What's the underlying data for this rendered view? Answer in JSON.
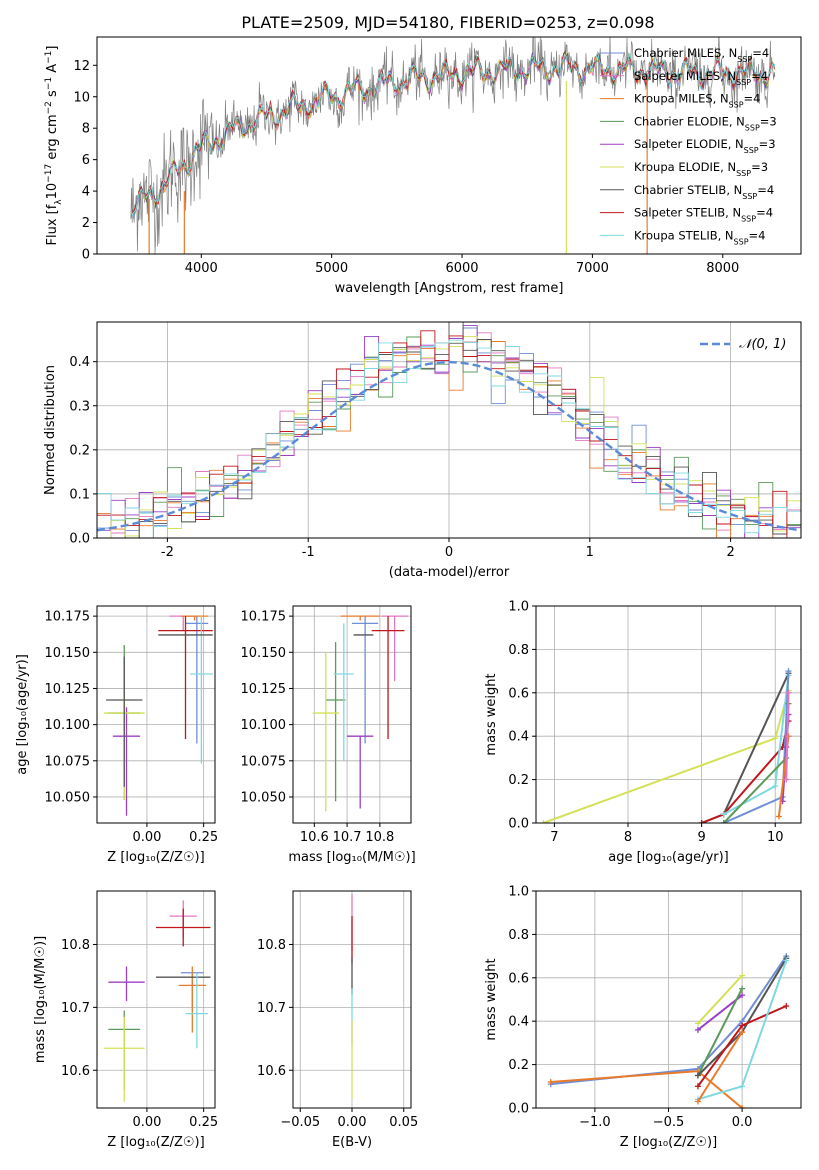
{
  "figure": {
    "title": "PLATE=2509, MJD=54180, FIBERID=0253, z=0.098"
  },
  "series_colors": {
    "Chabrier MILES": "#6f8fd6",
    "Salpeter MILES": "#e377c2",
    "Kroupa MILES": "#e87a2a",
    "Chabrier ELODIE": "#5a9a5a",
    "Salpeter ELODIE": "#9b3fc6",
    "Kroupa ELODIE": "#d4e157",
    "Chabrier STELIB": "#555555",
    "Salpeter STELIB": "#c0161c",
    "Kroupa STELIB": "#7fd8e0"
  },
  "chart_data": [
    {
      "id": "spectrum",
      "type": "line",
      "title": "PLATE=2509, MJD=54180, FIBERID=0253, z=0.098",
      "xlabel": "wavelength [Angstrom, rest frame]",
      "ylabel_main": "Flux [f",
      "ylabel_sub": "λ",
      "ylabel_mid": "10",
      "ylabel_sup1": "−17",
      "ylabel_rest": " erg cm",
      "ylabel_sup2": "−2",
      "ylabel_rest2": " s",
      "ylabel_sup3": "−1",
      "ylabel_rest3": " A",
      "ylabel_sup4": "−1",
      "ylabel_end": "]",
      "xlim": [
        3200,
        8600
      ],
      "ylim": [
        0,
        13.8
      ],
      "xticks": [
        4000,
        5000,
        6000,
        7000,
        8000
      ],
      "yticks": [
        0,
        2,
        4,
        6,
        8,
        10,
        12
      ],
      "legend": "top-right",
      "legend_entries": [
        {
          "name": "Chabrier MILES",
          "nssp": "4"
        },
        {
          "name": "Salpeter MILES",
          "nssp": "4"
        },
        {
          "name": "Kroupa MILES",
          "nssp": "4"
        },
        {
          "name": "Chabrier ELODIE",
          "nssp": "3"
        },
        {
          "name": "Salpeter ELODIE",
          "nssp": "3"
        },
        {
          "name": "Kroupa ELODIE",
          "nssp": "3"
        },
        {
          "name": "Chabrier STELIB",
          "nssp": "4"
        },
        {
          "name": "Salpeter STELIB",
          "nssp": "4"
        },
        {
          "name": "Kroupa STELIB",
          "nssp": "4"
        }
      ],
      "continuum": {
        "x": [
          3450,
          3700,
          4000,
          4300,
          4600,
          5000,
          5500,
          6000,
          6500,
          7000,
          7500,
          8000,
          8400
        ],
        "y": [
          2.8,
          4.3,
          6.8,
          8.1,
          9.0,
          10.0,
          11.0,
          11.5,
          11.8,
          11.8,
          11.6,
          11.5,
          11.5
        ]
      },
      "spikes": [
        {
          "x": 6800,
          "y_from": 0,
          "y_to": 11.0,
          "series": "Kroupa ELODIE"
        },
        {
          "x": 7420,
          "y_from": 0,
          "y_to": 11.5,
          "series": "Kroupa MILES"
        },
        {
          "x": 3600,
          "y_from": 0,
          "y_to": 3.5,
          "series": "Kroupa MILES"
        },
        {
          "x": 3870,
          "y_from": 0,
          "y_to": 4.0,
          "series": "Kroupa MILES"
        }
      ]
    },
    {
      "id": "residuals",
      "type": "line",
      "xlabel": "(data-model)/error",
      "ylabel": "Normed distribution",
      "xlim": [
        -2.5,
        2.5
      ],
      "ylim": [
        0,
        0.49
      ],
      "xticks": [
        -2,
        -1,
        0,
        1,
        2
      ],
      "yticks": [
        0.0,
        0.1,
        0.2,
        0.3,
        0.4
      ],
      "grid": true,
      "legend": "top-right",
      "legend_label": "𝒩(0, 1)",
      "legend_color": "#5b8bd6",
      "bin_width": 0.1,
      "bin_start": -2.5
    },
    {
      "id": "age-vs-Z",
      "type": "scatter",
      "xlabel": "Z [log₁₀(Z/Z☉)]",
      "ylabel": "age  [log₁₀(age/yr)]",
      "xlim": [
        -0.22,
        0.3
      ],
      "ylim": [
        10.032,
        10.182
      ],
      "xticks": [
        -0.25,
        0.0,
        0.25
      ],
      "xticklabels": [
        "−0.25",
        "0.00",
        "0.25"
      ],
      "yticks": [
        10.05,
        10.075,
        10.1,
        10.125,
        10.15,
        10.175
      ],
      "grid": true,
      "points": [
        {
          "series": "Chabrier MILES",
          "x": 0.22,
          "y": 10.17,
          "xerr": 0.05,
          "yerr_lo": 0.083,
          "yerr_hi": 0.005
        },
        {
          "series": "Salpeter MILES",
          "x": 0.16,
          "y": 10.175,
          "xerr": 0.06,
          "yerr_lo": 0.01,
          "yerr_hi": 0.0
        },
        {
          "series": "Kroupa MILES",
          "x": 0.21,
          "y": 10.175,
          "xerr": 0.06,
          "yerr_lo": 0.003,
          "yerr_hi": 0.0
        },
        {
          "series": "Chabrier ELODIE",
          "x": -0.1,
          "y": 10.108,
          "xerr": 0.07,
          "yerr_lo": 0.06,
          "yerr_hi": 0.047
        },
        {
          "series": "Salpeter ELODIE",
          "x": -0.09,
          "y": 10.092,
          "xerr": 0.06,
          "yerr_lo": 0.055,
          "yerr_hi": 0.02
        },
        {
          "series": "Kroupa ELODIE",
          "x": -0.1,
          "y": 10.108,
          "xerr": 0.09,
          "yerr_lo": 0.06,
          "yerr_hi": 0.012
        },
        {
          "series": "Chabrier STELIB",
          "x": -0.1,
          "y": 10.117,
          "xerr": 0.08,
          "yerr_lo": 0.06,
          "yerr_hi": 0.03
        },
        {
          "series": "Salpeter STELIB",
          "x": 0.17,
          "y": 10.165,
          "xerr": 0.12,
          "yerr_lo": 0.075,
          "yerr_hi": 0.01
        },
        {
          "series": "Kroupa STELIB",
          "x": 0.24,
          "y": 10.135,
          "xerr": 0.05,
          "yerr_lo": 0.062,
          "yerr_hi": 0.04
        },
        {
          "series": "Chabrier STELIB",
          "x": 0.17,
          "y": 10.162,
          "xerr": 0.12,
          "yerr_lo": 0.0,
          "yerr_hi": 0.0
        }
      ]
    },
    {
      "id": "age-vs-mass",
      "type": "scatter",
      "xlabel": "mass [log₁₀(M/M☉)]",
      "xlim": [
        10.535,
        10.895
      ],
      "ylim": [
        10.032,
        10.182
      ],
      "xticks": [
        10.6,
        10.7,
        10.8
      ],
      "yticks": [
        10.05,
        10.075,
        10.1,
        10.125,
        10.15,
        10.175
      ],
      "grid": true,
      "points": [
        {
          "series": "Chabrier MILES",
          "x": 10.755,
          "y": 10.17,
          "xerr": 0.04,
          "yerr_lo": 0.083,
          "yerr_hi": 0.005
        },
        {
          "series": "Salpeter MILES",
          "x": 10.845,
          "y": 10.175,
          "xerr": 0.04,
          "yerr_lo": 0.045,
          "yerr_hi": 0.0
        },
        {
          "series": "Kroupa MILES",
          "x": 10.74,
          "y": 10.175,
          "xerr": 0.06,
          "yerr_lo": 0.003,
          "yerr_hi": 0.0
        },
        {
          "series": "Chabrier ELODIE",
          "x": 10.665,
          "y": 10.117,
          "xerr": 0.03,
          "yerr_lo": 0.07,
          "yerr_hi": 0.04
        },
        {
          "series": "Salpeter ELODIE",
          "x": 10.74,
          "y": 10.092,
          "xerr": 0.04,
          "yerr_lo": 0.05,
          "yerr_hi": 0.0
        },
        {
          "series": "Kroupa ELODIE",
          "x": 10.635,
          "y": 10.108,
          "xerr": 0.04,
          "yerr_lo": 0.068,
          "yerr_hi": 0.042
        },
        {
          "series": "Chabrier STELIB",
          "x": 10.75,
          "y": 10.162,
          "xerr": 0.03,
          "yerr_lo": 0.0,
          "yerr_hi": 0.0
        },
        {
          "series": "Salpeter STELIB",
          "x": 10.825,
          "y": 10.165,
          "xerr": 0.05,
          "yerr_lo": 0.075,
          "yerr_hi": 0.01
        },
        {
          "series": "Kroupa STELIB",
          "x": 10.69,
          "y": 10.135,
          "xerr": 0.03,
          "yerr_lo": 0.06,
          "yerr_hi": 0.035
        }
      ]
    },
    {
      "id": "weight-vs-age",
      "type": "line",
      "xlabel": "age  [log₁₀(age/yr)]",
      "ylabel": "mass weight",
      "xlim": [
        6.75,
        10.35
      ],
      "ylim": [
        0.0,
        1.0
      ],
      "xticks": [
        7,
        8,
        9,
        10
      ],
      "yticks": [
        0.0,
        0.2,
        0.4,
        0.6,
        0.8,
        1.0
      ],
      "grid": true,
      "series": [
        {
          "name": "Kroupa ELODIE",
          "x": [
            6.85,
            10.0,
            10.18
          ],
          "y": [
            0.0,
            0.39,
            0.61
          ]
        },
        {
          "name": "Chabrier STELIB",
          "x": [
            9.0,
            9.3,
            10.18
          ],
          "y": [
            0.0,
            0.04,
            0.69
          ]
        },
        {
          "name": "Salpeter STELIB",
          "x": [
            9.0,
            9.3,
            10.1,
            10.18
          ],
          "y": [
            0.0,
            0.04,
            0.35,
            0.47
          ]
        },
        {
          "name": "Kroupa STELIB",
          "x": [
            9.3,
            10.0,
            10.18
          ],
          "y": [
            0.04,
            0.17,
            0.68
          ]
        },
        {
          "name": "Chabrier MILES",
          "x": [
            9.3,
            10.1,
            10.18
          ],
          "y": [
            0.0,
            0.12,
            0.7
          ]
        },
        {
          "name": "Chabrier ELODIE",
          "x": [
            9.3,
            10.15,
            10.18
          ],
          "y": [
            0.0,
            0.3,
            0.55
          ]
        },
        {
          "name": "Salpeter ELODIE",
          "x": [
            10.1,
            10.15,
            10.18
          ],
          "y": [
            0.1,
            0.35,
            0.5
          ]
        },
        {
          "name": "Kroupa MILES",
          "x": [
            10.05,
            10.18
          ],
          "y": [
            0.03,
            0.4
          ]
        },
        {
          "name": "Salpeter MILES",
          "x": [
            10.15,
            10.18
          ],
          "y": [
            0.2,
            0.6
          ]
        }
      ]
    },
    {
      "id": "mass-vs-Z",
      "type": "scatter",
      "xlabel": "Z [log₁₀(Z/Z☉)]",
      "ylabel": "mass [log₁₀(M/M☉)]",
      "xlim": [
        -0.22,
        0.3
      ],
      "ylim": [
        10.54,
        10.885
      ],
      "xticks": [
        -0.25,
        0.0,
        0.25
      ],
      "xticklabels": [
        "−0.25",
        "0.00",
        "0.25"
      ],
      "yticks": [
        10.6,
        10.7,
        10.8
      ],
      "grid": true,
      "points": [
        {
          "series": "Chabrier MILES",
          "x": 0.2,
          "y": 10.755,
          "xerr": 0.05,
          "yerr_lo": 0.06,
          "yerr_hi": 0.0
        },
        {
          "series": "Salpeter MILES",
          "x": 0.16,
          "y": 10.845,
          "xerr": 0.06,
          "yerr_lo": 0.035,
          "yerr_hi": 0.025
        },
        {
          "series": "Kroupa MILES",
          "x": 0.2,
          "y": 10.735,
          "xerr": 0.06,
          "yerr_lo": 0.075,
          "yerr_hi": 0.03
        },
        {
          "series": "Chabrier ELODIE",
          "x": -0.1,
          "y": 10.665,
          "xerr": 0.07,
          "yerr_lo": 0.095,
          "yerr_hi": 0.03
        },
        {
          "series": "Salpeter ELODIE",
          "x": -0.09,
          "y": 10.74,
          "xerr": 0.08,
          "yerr_lo": 0.03,
          "yerr_hi": 0.025
        },
        {
          "series": "Kroupa ELODIE",
          "x": -0.1,
          "y": 10.635,
          "xerr": 0.09,
          "yerr_lo": 0.085,
          "yerr_hi": 0.05
        },
        {
          "series": "Chabrier STELIB",
          "x": 0.16,
          "y": 10.748,
          "xerr": 0.12,
          "yerr_lo": 0.0,
          "yerr_hi": 0.0
        },
        {
          "series": "Salpeter STELIB",
          "x": 0.16,
          "y": 10.827,
          "xerr": 0.12,
          "yerr_lo": 0.03,
          "yerr_hi": 0.03
        },
        {
          "series": "Kroupa STELIB",
          "x": 0.22,
          "y": 10.69,
          "xerr": 0.05,
          "yerr_lo": 0.055,
          "yerr_hi": 0.065
        }
      ]
    },
    {
      "id": "mass-vs-EBV",
      "type": "scatter",
      "xlabel": "E(B-V)",
      "xlim": [
        -0.057,
        0.057
      ],
      "ylim": [
        10.54,
        10.885
      ],
      "xticks": [
        -0.05,
        0.0,
        0.05
      ],
      "xticklabels": [
        "−0.05",
        "0.00",
        "0.05"
      ],
      "yticks": [
        10.6,
        10.7,
        10.8
      ],
      "grid": true,
      "points": [
        {
          "series": "Salpeter MILES",
          "x": 0.0,
          "y": 10.84,
          "xerr": 0.0,
          "yerr_lo": 0.05,
          "yerr_hi": 0.04
        },
        {
          "series": "Salpeter STELIB",
          "x": 0.0,
          "y": 10.81,
          "xerr": 0.0,
          "yerr_lo": 0.04,
          "yerr_hi": 0.035
        },
        {
          "series": "Chabrier STELIB",
          "x": 0.0,
          "y": 10.75,
          "xerr": 0.0,
          "yerr_lo": 0.03,
          "yerr_hi": 0.03
        },
        {
          "series": "Kroupa STELIB",
          "x": 0.0,
          "y": 10.69,
          "xerr": 0.0,
          "yerr_lo": 0.05,
          "yerr_hi": 0.04
        },
        {
          "series": "Kroupa ELODIE",
          "x": 0.0,
          "y": 10.63,
          "xerr": 0.0,
          "yerr_lo": 0.075,
          "yerr_hi": 0.05
        }
      ]
    },
    {
      "id": "weight-vs-Z",
      "type": "line",
      "xlabel": "Z [log₁₀(Z/Z☉)]",
      "ylabel": "mass weight",
      "xlim": [
        -1.4,
        0.4
      ],
      "ylim": [
        0.0,
        1.0
      ],
      "xticks": [
        -1.0,
        -0.5,
        0.0
      ],
      "xticklabels": [
        "−1.0",
        "−0.5",
        "0.0"
      ],
      "yticks": [
        0.0,
        0.2,
        0.4,
        0.6,
        0.8,
        1.0
      ],
      "grid": true,
      "series": [
        {
          "name": "Chabrier MILES",
          "x": [
            -1.3,
            -0.3,
            0.0,
            0.3
          ],
          "y": [
            0.11,
            0.18,
            0.4,
            0.7
          ]
        },
        {
          "name": "Kroupa MILES",
          "x": [
            -1.3,
            -0.3,
            0.0
          ],
          "y": [
            0.12,
            0.17,
            0.0
          ]
        },
        {
          "name": "Kroupa ELODIE",
          "x": [
            -0.3,
            0.0
          ],
          "y": [
            0.39,
            0.61
          ]
        },
        {
          "name": "Salpeter ELODIE",
          "x": [
            -0.3,
            0.0
          ],
          "y": [
            0.36,
            0.52
          ]
        },
        {
          "name": "Chabrier ELODIE",
          "x": [
            -0.3,
            0.0
          ],
          "y": [
            0.15,
            0.55
          ]
        },
        {
          "name": "Chabrier STELIB",
          "x": [
            -0.3,
            0.0,
            0.3
          ],
          "y": [
            0.15,
            0.35,
            0.69
          ]
        },
        {
          "name": "Salpeter STELIB",
          "x": [
            -0.3,
            0.0,
            0.3
          ],
          "y": [
            0.1,
            0.38,
            0.47
          ]
        },
        {
          "name": "Kroupa STELIB",
          "x": [
            -0.3,
            0.0,
            0.3
          ],
          "y": [
            0.04,
            0.1,
            0.68
          ]
        },
        {
          "name": "Kroupa MILES",
          "x": [
            -0.3,
            0.0
          ],
          "y": [
            0.03,
            0.35
          ]
        }
      ]
    }
  ]
}
